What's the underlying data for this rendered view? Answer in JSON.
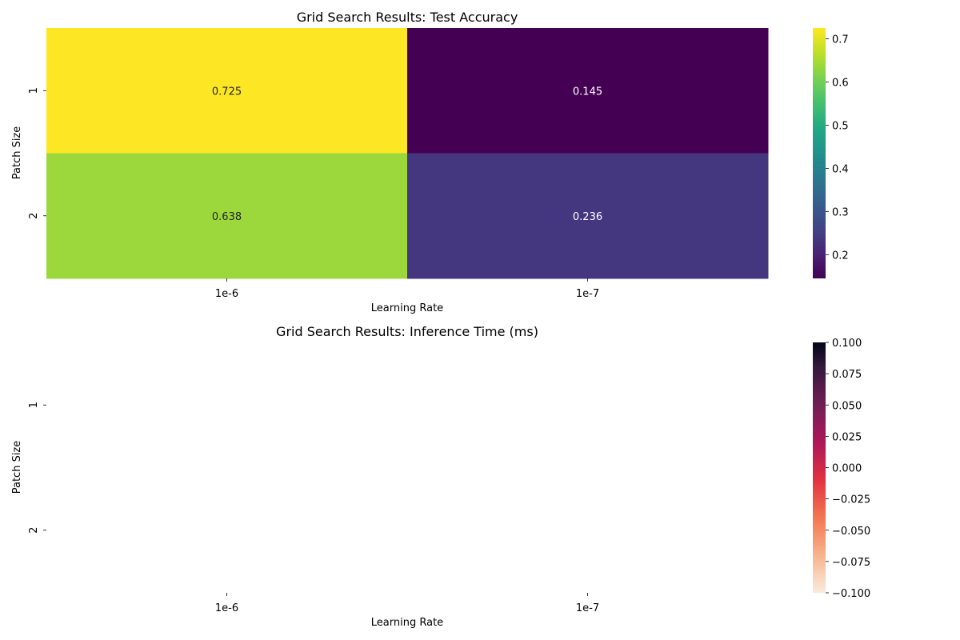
{
  "chart_data": [
    {
      "type": "heatmap",
      "title": "Grid Search Results: Test Accuracy",
      "xlabel": "Learning Rate",
      "ylabel": "Patch Size",
      "x_categories": [
        "1e-6",
        "1e-7"
      ],
      "y_categories": [
        "1",
        "2"
      ],
      "values": [
        [
          0.725,
          0.145
        ],
        [
          0.638,
          0.236
        ]
      ],
      "annotations": [
        [
          "0.725",
          "0.145"
        ],
        [
          "0.638",
          "0.236"
        ]
      ],
      "colormap": "viridis",
      "vmin": 0.145,
      "vmax": 0.725,
      "colorbar_ticks": [
        "0.2",
        "0.3",
        "0.4",
        "0.5",
        "0.6",
        "0.7"
      ]
    },
    {
      "type": "heatmap",
      "title": "Grid Search Results: Inference Time (ms)",
      "xlabel": "Learning Rate",
      "ylabel": "Patch Size",
      "x_categories": [
        "1e-6",
        "1e-7"
      ],
      "y_categories": [
        "1",
        "2"
      ],
      "values": [
        [
          null,
          null
        ],
        [
          null,
          null
        ]
      ],
      "colormap": "rocket_r",
      "vmin": -0.1,
      "vmax": 0.1,
      "colorbar_ticks": [
        "0.100",
        "0.075",
        "0.050",
        "0.025",
        "0.000",
        "−0.025",
        "−0.050",
        "−0.075",
        "−0.100"
      ]
    }
  ]
}
